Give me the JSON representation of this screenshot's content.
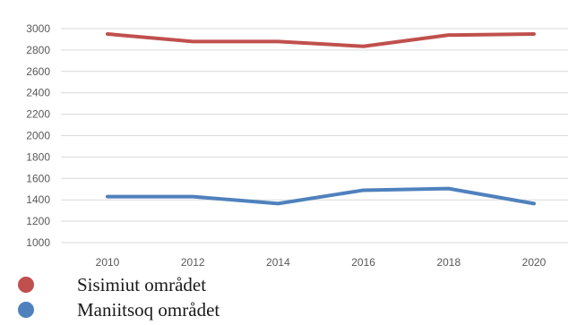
{
  "chart_data": {
    "type": "line",
    "x": [
      2010,
      2012,
      2014,
      2016,
      2018,
      2020
    ],
    "ylim": [
      1000,
      3000
    ],
    "yticks": [
      1000,
      1200,
      1400,
      1600,
      1800,
      2000,
      2200,
      2400,
      2600,
      2800,
      3000
    ],
    "grid": true,
    "legend_position": "bottom-left",
    "series": [
      {
        "name": "Sisimiut området",
        "color": "#c0504d",
        "values": [
          2950,
          2880,
          2880,
          2835,
          2940,
          2950
        ]
      },
      {
        "name": "Maniitsoq området",
        "color": "#4f81bd",
        "values": [
          1430,
          1430,
          1365,
          1490,
          1505,
          1365
        ]
      }
    ]
  },
  "legend": {
    "items": [
      {
        "label": "Sisimiut området",
        "dot_color": "#c0504d"
      },
      {
        "label": "Maniitsoq området",
        "dot_color": "#4f81bd"
      }
    ]
  }
}
